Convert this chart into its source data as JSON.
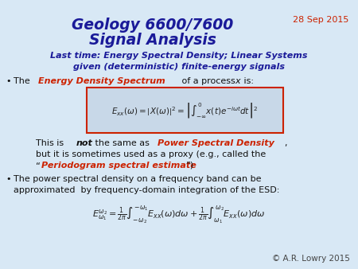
{
  "bg_color": "#d8e8f5",
  "title_line1": "Geology 6600/7600",
  "title_line2": "Signal Analysis",
  "title_color": "#1a1a99",
  "date_text": "28 Sep 2015",
  "date_color": "#cc2200",
  "subtitle_color": "#1a1a99",
  "copyright": "© A.R. Lowry 2015",
  "copyright_color": "#444444",
  "body_color": "#111111",
  "red_color": "#cc2200",
  "dark_blue": "#1a1a99"
}
